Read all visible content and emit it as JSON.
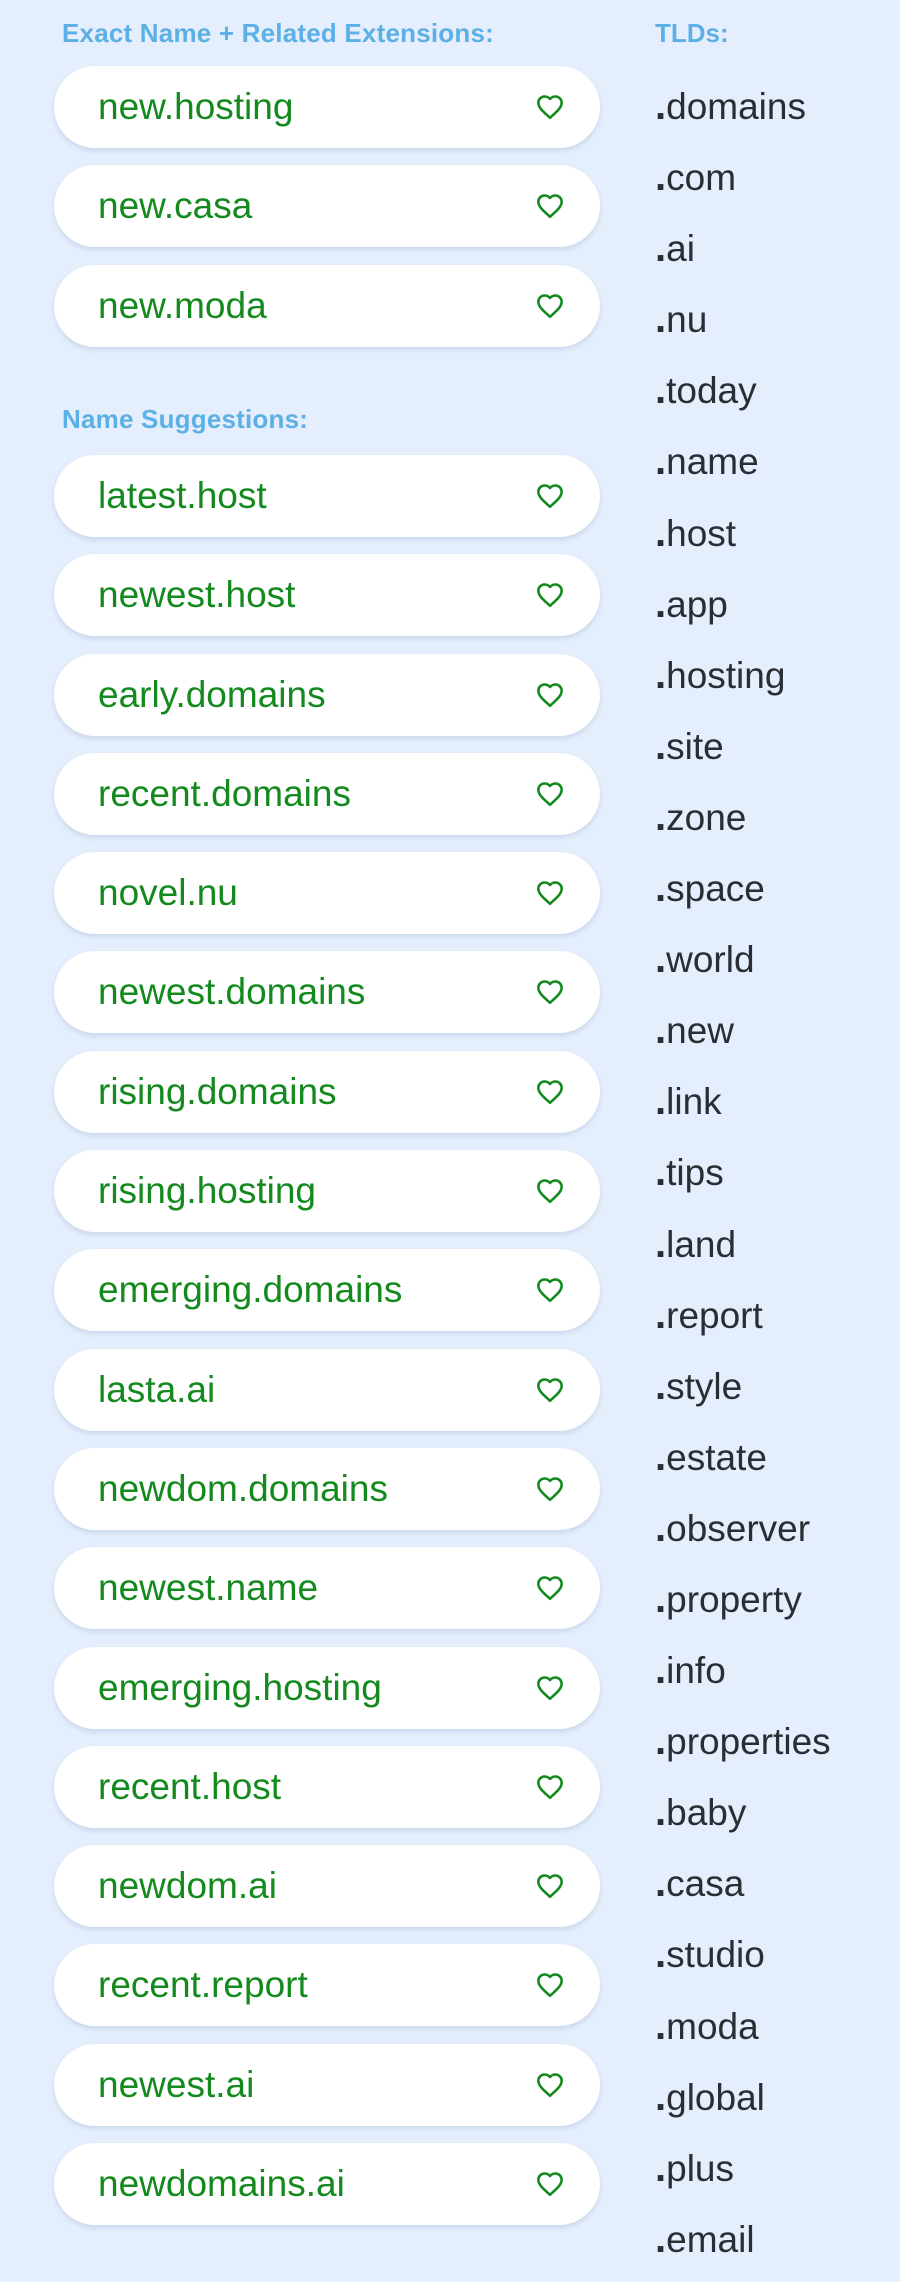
{
  "exact": {
    "heading": "Exact Name + Related Extensions:",
    "items": [
      "new.hosting",
      "new.casa",
      "new.moda"
    ]
  },
  "suggestions": {
    "heading": "Name Suggestions:",
    "items": [
      "latest.host",
      "newest.host",
      "early.domains",
      "recent.domains",
      "novel.nu",
      "newest.domains",
      "rising.domains",
      "rising.hosting",
      "emerging.domains",
      "lasta.ai",
      "newdom.domains",
      "newest.name",
      "emerging.hosting",
      "recent.host",
      "newdom.ai",
      "recent.report",
      "newest.ai",
      "newdomains.ai"
    ]
  },
  "tlds": {
    "heading": "TLDs:",
    "items": [
      "domains",
      "com",
      "ai",
      "nu",
      "today",
      "name",
      "host",
      "app",
      "hosting",
      "site",
      "zone",
      "space",
      "world",
      "new",
      "link",
      "tips",
      "land",
      "report",
      "style",
      "estate",
      "observer",
      "property",
      "info",
      "properties",
      "baby",
      "casa",
      "studio",
      "moda",
      "global",
      "plus",
      "email"
    ]
  },
  "colors": {
    "background": "#e4eefc",
    "heading": "#5cb0e6",
    "domain_text": "#148a1e",
    "heart": "#148a1e",
    "tld_text": "#2a2e34"
  },
  "icons": {
    "favorite": "heart-outline-icon"
  }
}
